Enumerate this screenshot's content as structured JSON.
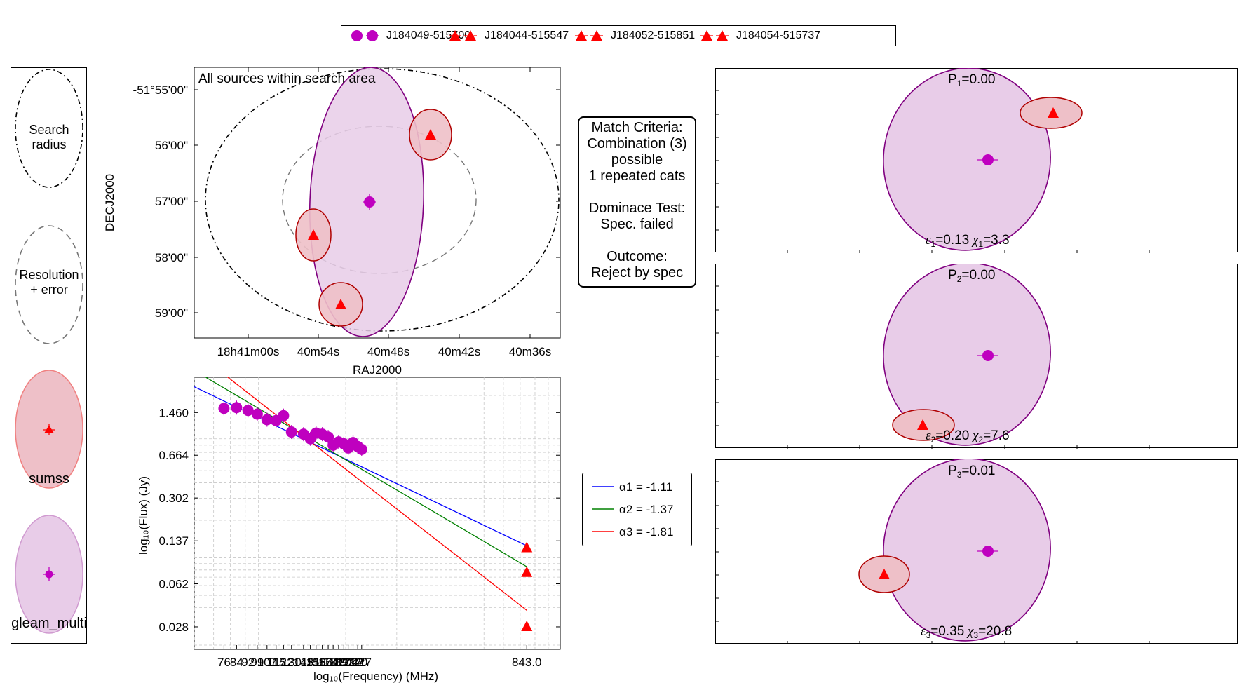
{
  "legend": {
    "items": [
      {
        "label": "J184049-515700",
        "marker": "octagon",
        "color": "#bf00bf"
      },
      {
        "label": "J184044-515547",
        "marker": "triangle",
        "color": "#ff0000"
      },
      {
        "label": "J184052-515851",
        "marker": "triangle",
        "color": "#ff0000"
      },
      {
        "label": "J184054-515737",
        "marker": "triangle",
        "color": "#ff0000"
      }
    ]
  },
  "key_panel": {
    "search_radius": [
      "Search",
      "radius"
    ],
    "resolution": [
      "Resolution",
      "+ error"
    ],
    "sumss": "sumss",
    "gleam": "gleam_multi"
  },
  "match": {
    "lines": [
      "Match Criteria:",
      "Combination (3)",
      "possible",
      "1 repeated cats",
      "",
      "Dominace Test:",
      "Spec. failed",
      "",
      "Outcome:",
      "Reject by spec"
    ]
  },
  "colors": {
    "gleam_fill": "#e8cce8",
    "gleam_edge": "#800080",
    "gleam_marker": "#bf00bf",
    "sumss_fill": "#eec0c8",
    "sumss_edge": "#b00000",
    "sumss_marker": "#ff0000",
    "fit1": "#0000ff",
    "fit2": "#008000",
    "fit3": "#ff0000"
  },
  "chart_data": [
    {
      "type": "scatter",
      "title": "All sources within search area",
      "xlabel": "RAJ2000",
      "ylabel": "DECJ2000",
      "xticks": [
        "18h41m00s",
        "40m54s",
        "40m48s",
        "40m42s",
        "40m36s"
      ],
      "yticks": [
        "-51°55'00\"",
        "56'00\"",
        "57'00\"",
        "58'00\"",
        "59'00\""
      ],
      "sources": [
        {
          "name": "J184049-515700",
          "ra": "18h40m49s",
          "dec": "-51°57'00\""
        },
        {
          "name": "J184044-515547",
          "ra": "18h40m44s",
          "dec": "-51°55'47\""
        },
        {
          "name": "J184052-515851",
          "ra": "18h40m52s",
          "dec": "-51°58'51\""
        },
        {
          "name": "J184054-515737",
          "ra": "18h40m54s",
          "dec": "-51°57'37\""
        }
      ]
    },
    {
      "type": "scatter",
      "xlabel": "log₁₀(Frequency) (MHz)",
      "ylabel": "log₁₀(Flux) (Jy)",
      "yticks": [
        "1.460",
        "0.664",
        "0.302",
        "0.137",
        "0.062",
        "0.028"
      ],
      "xtick_labels": [
        "76",
        "84",
        "92",
        "99",
        "107",
        "115",
        "122",
        "130",
        "143",
        "151",
        "158",
        "166",
        "174",
        "181",
        "189",
        "197",
        "204",
        "212",
        "220",
        "227",
        "843.0"
      ],
      "gleam_points": [
        {
          "freq": 76,
          "flux": 1.58
        },
        {
          "freq": 84,
          "flux": 1.6
        },
        {
          "freq": 92,
          "flux": 1.52
        },
        {
          "freq": 99,
          "flux": 1.42
        },
        {
          "freq": 107,
          "flux": 1.28
        },
        {
          "freq": 115,
          "flux": 1.26
        },
        {
          "freq": 122,
          "flux": 1.38
        },
        {
          "freq": 130,
          "flux": 1.02
        },
        {
          "freq": 143,
          "flux": 0.98
        },
        {
          "freq": 151,
          "flux": 0.9
        },
        {
          "freq": 158,
          "flux": 1.0
        },
        {
          "freq": 166,
          "flux": 0.98
        },
        {
          "freq": 174,
          "flux": 0.93
        },
        {
          "freq": 181,
          "flux": 0.8
        },
        {
          "freq": 189,
          "flux": 0.85
        },
        {
          "freq": 197,
          "flux": 0.82
        },
        {
          "freq": 204,
          "flux": 0.76
        },
        {
          "freq": 212,
          "flux": 0.84
        },
        {
          "freq": 220,
          "flux": 0.78
        },
        {
          "freq": 227,
          "flux": 0.74
        }
      ],
      "sumss_points": [
        {
          "freq": 843,
          "flux": 0.12
        },
        {
          "freq": 843,
          "flux": 0.076
        },
        {
          "freq": 843,
          "flux": 0.028
        }
      ],
      "fits": [
        {
          "name": "α1 = -1.11",
          "alpha": -1.11,
          "flux_at_843": 0.125,
          "color": "#0000ff"
        },
        {
          "name": "α2 = -1.37",
          "alpha": -1.37,
          "flux_at_843": 0.085,
          "color": "#008000"
        },
        {
          "name": "α3 = -1.81",
          "alpha": -1.81,
          "flux_at_843": 0.038,
          "color": "#ff0000"
        }
      ]
    },
    {
      "type": "scatter",
      "panels": [
        {
          "p_label": "P",
          "p_sub": "1",
          "p_value": "=0.00",
          "eps_sub": "1",
          "eps_value": "=0.13",
          "chi_sub": "1",
          "chi_value": "=3.3"
        },
        {
          "p_label": "P",
          "p_sub": "2",
          "p_value": "=0.00",
          "eps_sub": "2",
          "eps_value": "=0.20",
          "chi_sub": "2",
          "chi_value": "=7.6"
        },
        {
          "p_label": "P",
          "p_sub": "3",
          "p_value": "=0.01",
          "eps_sub": "3",
          "eps_value": "=0.35",
          "chi_sub": "3",
          "chi_value": "=20.8"
        }
      ]
    }
  ]
}
